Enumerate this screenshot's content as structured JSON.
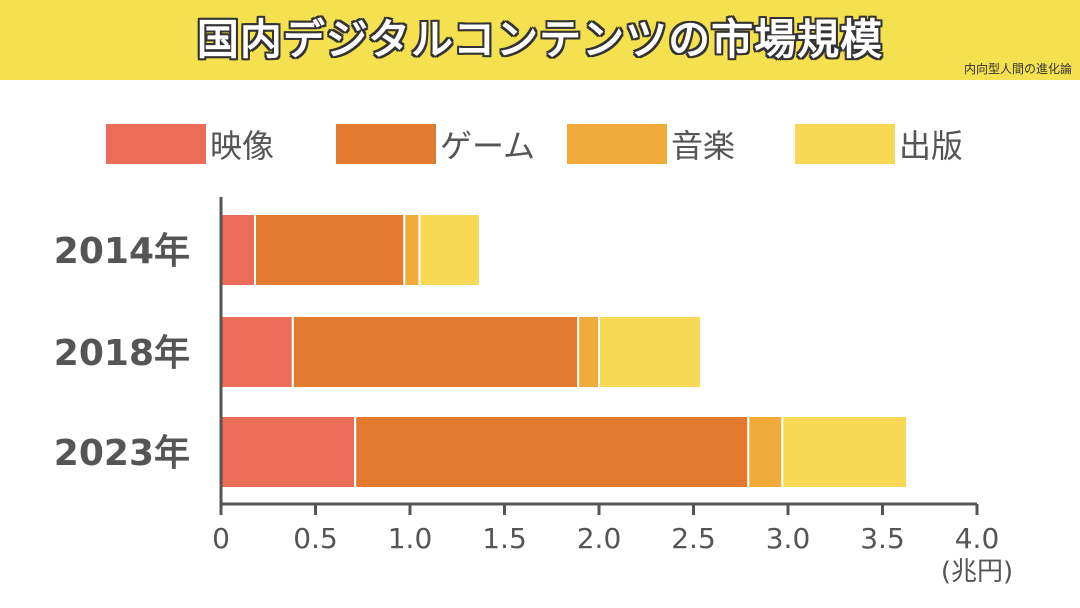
{
  "header": {
    "title": "国内デジタルコンテンツの市場規模",
    "brand": "内向型人間の進化論"
  },
  "colors": {
    "banner": "#f5e04f",
    "video": "#ec6c5a",
    "game": "#e27a30",
    "music": "#f0ab3a",
    "publishing": "#f7d955",
    "axis": "#555555"
  },
  "chart_data": {
    "type": "bar",
    "orientation": "horizontal",
    "stacked": true,
    "title": "国内デジタルコンテンツの市場規模",
    "categories": [
      "2014年",
      "2018年",
      "2023年"
    ],
    "series": [
      {
        "name": "映像",
        "values": [
          0.18,
          0.38,
          0.71
        ]
      },
      {
        "name": "ゲーム",
        "values": [
          0.79,
          1.51,
          2.08
        ]
      },
      {
        "name": "音楽",
        "values": [
          0.08,
          0.11,
          0.18
        ]
      },
      {
        "name": "出版",
        "values": [
          0.32,
          0.54,
          0.66
        ]
      }
    ],
    "xlim": [
      0,
      4.0
    ],
    "xticks": [
      "0",
      "0.5",
      "1.0",
      "1.5",
      "2.0",
      "2.5",
      "3.0",
      "3.5",
      "4.0"
    ],
    "xunit": "(兆円)",
    "legend_position": "top"
  }
}
